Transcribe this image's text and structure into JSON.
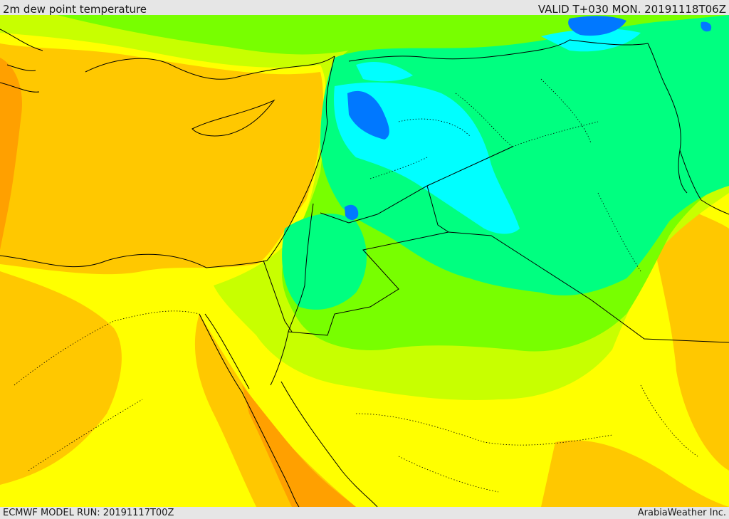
{
  "header": {
    "title": "2m dew point temperature",
    "valid": "VALID T+030 MON. 20191118T06Z"
  },
  "footer": {
    "model_run": "ECMWF MODEL RUN: 20191117T00Z",
    "credit": "ArabiaWeather Inc."
  },
  "colors": {
    "orange": "#ffa000",
    "light_orange": "#ffc800",
    "yellow": "#ffff00",
    "yellow_green": "#c8ff00",
    "light_green": "#78ff00",
    "green": "#00ff80",
    "cyan": "#00ffff",
    "blue": "#0078ff",
    "border": "#000000"
  }
}
